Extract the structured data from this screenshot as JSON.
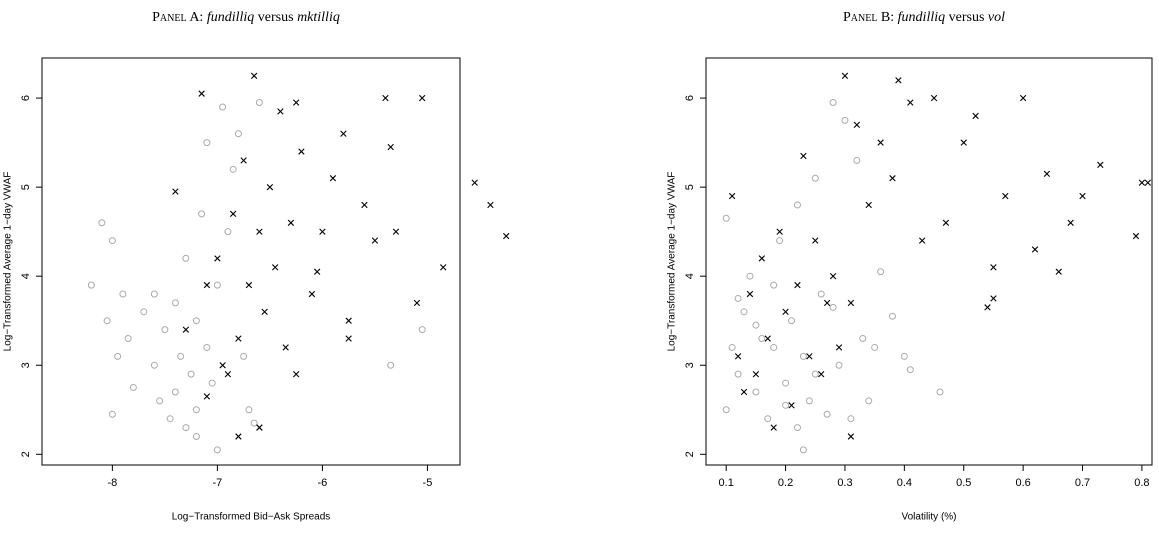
{
  "chart_data": [
    {
      "type": "scatter",
      "title_label": "Panel A:",
      "title_var1": "fundilliq",
      "title_connector": "versus",
      "title_var2": "mktilliq",
      "x_label": "Log−Transformed Bid−Ask Spreads",
      "y_label": "Log−Transformed Average 1−day VWAF",
      "xlim": [
        -8.67,
        -4.69
      ],
      "ylim": [
        1.88,
        6.45
      ],
      "xticks": [
        -8,
        -7,
        -6,
        -5
      ],
      "yticks": [
        2,
        3,
        4,
        5,
        6
      ],
      "series": [
        {
          "color": "#aaaaaa",
          "marker": "circle",
          "x": [
            -8.2,
            -8.1,
            -8.05,
            -8.0,
            -7.95,
            -7.9,
            -7.85,
            -7.8,
            -7.7,
            -7.6,
            -7.55,
            -7.5,
            -7.45,
            -7.4,
            -7.35,
            -7.3,
            -7.3,
            -7.25,
            -7.2,
            -7.2,
            -7.15,
            -7.1,
            -7.1,
            -7.05,
            -7.0,
            -7.0,
            -6.95,
            -6.9,
            -6.85,
            -6.8,
            -6.75,
            -6.7,
            -6.65,
            -6.6,
            -7.4,
            -7.6,
            -7.2,
            -5.35,
            -5.05,
            -8.0
          ],
          "values": [
            3.9,
            4.6,
            3.5,
            2.45,
            3.1,
            3.8,
            3.3,
            2.75,
            3.6,
            3.0,
            2.6,
            3.4,
            2.4,
            3.7,
            3.1,
            2.3,
            4.2,
            2.9,
            3.5,
            2.5,
            4.7,
            3.2,
            5.5,
            2.8,
            2.05,
            3.9,
            5.9,
            4.5,
            5.2,
            5.6,
            3.1,
            2.5,
            2.35,
            5.95,
            2.7,
            3.8,
            2.2,
            3.0,
            3.4,
            4.4
          ]
        },
        {
          "color": "#000000",
          "marker": "x",
          "x": [
            -7.4,
            -7.3,
            -7.15,
            -7.1,
            -7.0,
            -6.95,
            -6.9,
            -6.85,
            -6.8,
            -6.75,
            -6.7,
            -6.65,
            -6.6,
            -6.6,
            -6.55,
            -6.5,
            -6.45,
            -6.4,
            -6.35,
            -6.3,
            -6.25,
            -6.2,
            -6.1,
            -6.05,
            -6.0,
            -5.9,
            -5.8,
            -5.75,
            -5.75,
            -5.6,
            -5.5,
            -5.4,
            -5.35,
            -5.3,
            -5.1,
            -5.05,
            -4.85,
            -4.55,
            -4.4,
            -4.25,
            -6.6,
            -6.8,
            -7.1,
            -6.25
          ],
          "values": [
            4.95,
            3.4,
            6.05,
            2.65,
            4.2,
            3.0,
            2.9,
            4.7,
            2.2,
            5.3,
            3.9,
            6.25,
            2.3,
            4.5,
            3.6,
            5.0,
            4.1,
            5.85,
            3.2,
            4.6,
            2.9,
            5.4,
            3.8,
            4.05,
            4.5,
            5.1,
            5.6,
            3.5,
            3.3,
            4.8,
            4.4,
            6.0,
            5.45,
            4.5,
            3.7,
            6.0,
            4.1,
            5.05,
            4.8,
            4.45,
            2.3,
            3.3,
            3.9,
            5.95
          ]
        }
      ]
    },
    {
      "type": "scatter",
      "title_label": "Panel B:",
      "title_var1": "fundilliq",
      "title_connector": "versus",
      "title_var2": "vol",
      "x_label": "Volatility (%)",
      "y_label": "Log−Transformed Average 1−day VWAF",
      "xlim": [
        0.066,
        0.817
      ],
      "ylim": [
        1.88,
        6.45
      ],
      "xticks": [
        0.1,
        0.2,
        0.3,
        0.4,
        0.5,
        0.6,
        0.7,
        0.8
      ],
      "yticks": [
        2,
        3,
        4,
        5,
        6
      ],
      "series": [
        {
          "color": "#aaaaaa",
          "marker": "circle",
          "x": [
            0.1,
            0.1,
            0.11,
            0.12,
            0.13,
            0.14,
            0.15,
            0.16,
            0.17,
            0.18,
            0.19,
            0.2,
            0.21,
            0.22,
            0.22,
            0.23,
            0.24,
            0.25,
            0.26,
            0.27,
            0.28,
            0.29,
            0.3,
            0.31,
            0.32,
            0.33,
            0.34,
            0.35,
            0.36,
            0.38,
            0.4,
            0.41,
            0.46,
            0.12,
            0.15,
            0.2,
            0.25,
            0.28,
            0.18,
            0.23
          ],
          "values": [
            2.5,
            4.65,
            3.2,
            2.9,
            3.6,
            4.0,
            2.7,
            3.3,
            2.4,
            3.9,
            4.4,
            2.8,
            3.5,
            2.3,
            4.8,
            3.1,
            2.6,
            5.1,
            3.8,
            2.45,
            5.95,
            3.0,
            5.75,
            2.4,
            5.3,
            3.3,
            2.6,
            3.2,
            4.05,
            3.55,
            3.1,
            2.95,
            2.7,
            3.75,
            3.45,
            2.55,
            2.9,
            3.65,
            3.2,
            2.05
          ]
        },
        {
          "color": "#000000",
          "marker": "x",
          "x": [
            0.11,
            0.12,
            0.13,
            0.14,
            0.15,
            0.16,
            0.17,
            0.18,
            0.19,
            0.2,
            0.21,
            0.22,
            0.23,
            0.24,
            0.25,
            0.26,
            0.27,
            0.28,
            0.29,
            0.3,
            0.31,
            0.32,
            0.34,
            0.36,
            0.38,
            0.39,
            0.41,
            0.43,
            0.45,
            0.47,
            0.5,
            0.52,
            0.54,
            0.55,
            0.57,
            0.6,
            0.62,
            0.64,
            0.66,
            0.68,
            0.7,
            0.73,
            0.79,
            0.8,
            0.81,
            0.31,
            0.55
          ],
          "values": [
            4.9,
            3.1,
            2.7,
            3.8,
            2.9,
            4.2,
            3.3,
            2.3,
            4.5,
            3.6,
            2.55,
            3.9,
            5.35,
            3.1,
            4.4,
            2.9,
            3.7,
            4.0,
            3.2,
            6.25,
            2.2,
            5.7,
            4.8,
            5.5,
            5.1,
            6.2,
            5.95,
            4.4,
            6.0,
            4.6,
            5.5,
            5.8,
            3.65,
            4.1,
            4.9,
            6.0,
            4.3,
            5.15,
            4.05,
            4.6,
            4.9,
            5.25,
            4.45,
            5.05,
            5.05,
            3.7,
            3.75
          ]
        }
      ]
    }
  ]
}
